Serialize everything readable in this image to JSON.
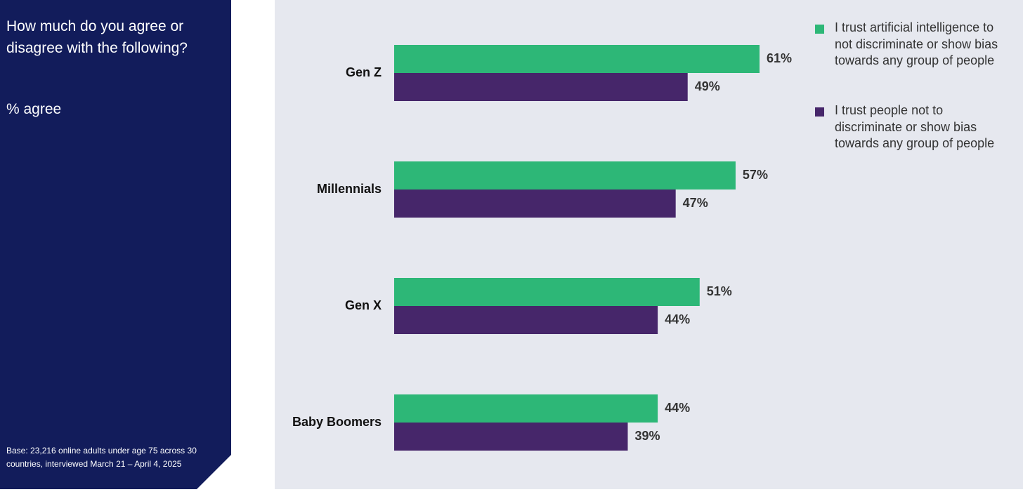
{
  "sidebar": {
    "question": "How much do you agree or disagree with the following?",
    "subtitle": "% agree",
    "base_note": "Base: 23,216 online adults under age 75 across 30 countries, interviewed March 21 – April 4, 2025"
  },
  "colors": {
    "sidebar_bg": "#121c5b",
    "plot_bg": "#e6e8ef",
    "series_ai": "#2db777",
    "series_people": "#46266a"
  },
  "chart_data": {
    "type": "bar",
    "orientation": "horizontal",
    "title": "How much do you agree or disagree with the following?",
    "subtitle": "% agree",
    "categories": [
      "Gen Z",
      "Millennials",
      "Gen X",
      "Baby Boomers"
    ],
    "series": [
      {
        "name": "I trust artificial intelligence to not discriminate or show bias towards any group of people",
        "values": [
          61,
          57,
          51,
          44
        ],
        "color": "#2db777"
      },
      {
        "name": "I trust people not to discriminate or show bias towards any group of people",
        "values": [
          49,
          47,
          44,
          39
        ],
        "color": "#46266a"
      }
    ],
    "value_suffix": "%",
    "xlim": [
      0,
      100
    ],
    "grid": false,
    "legend_position": "top-right"
  }
}
